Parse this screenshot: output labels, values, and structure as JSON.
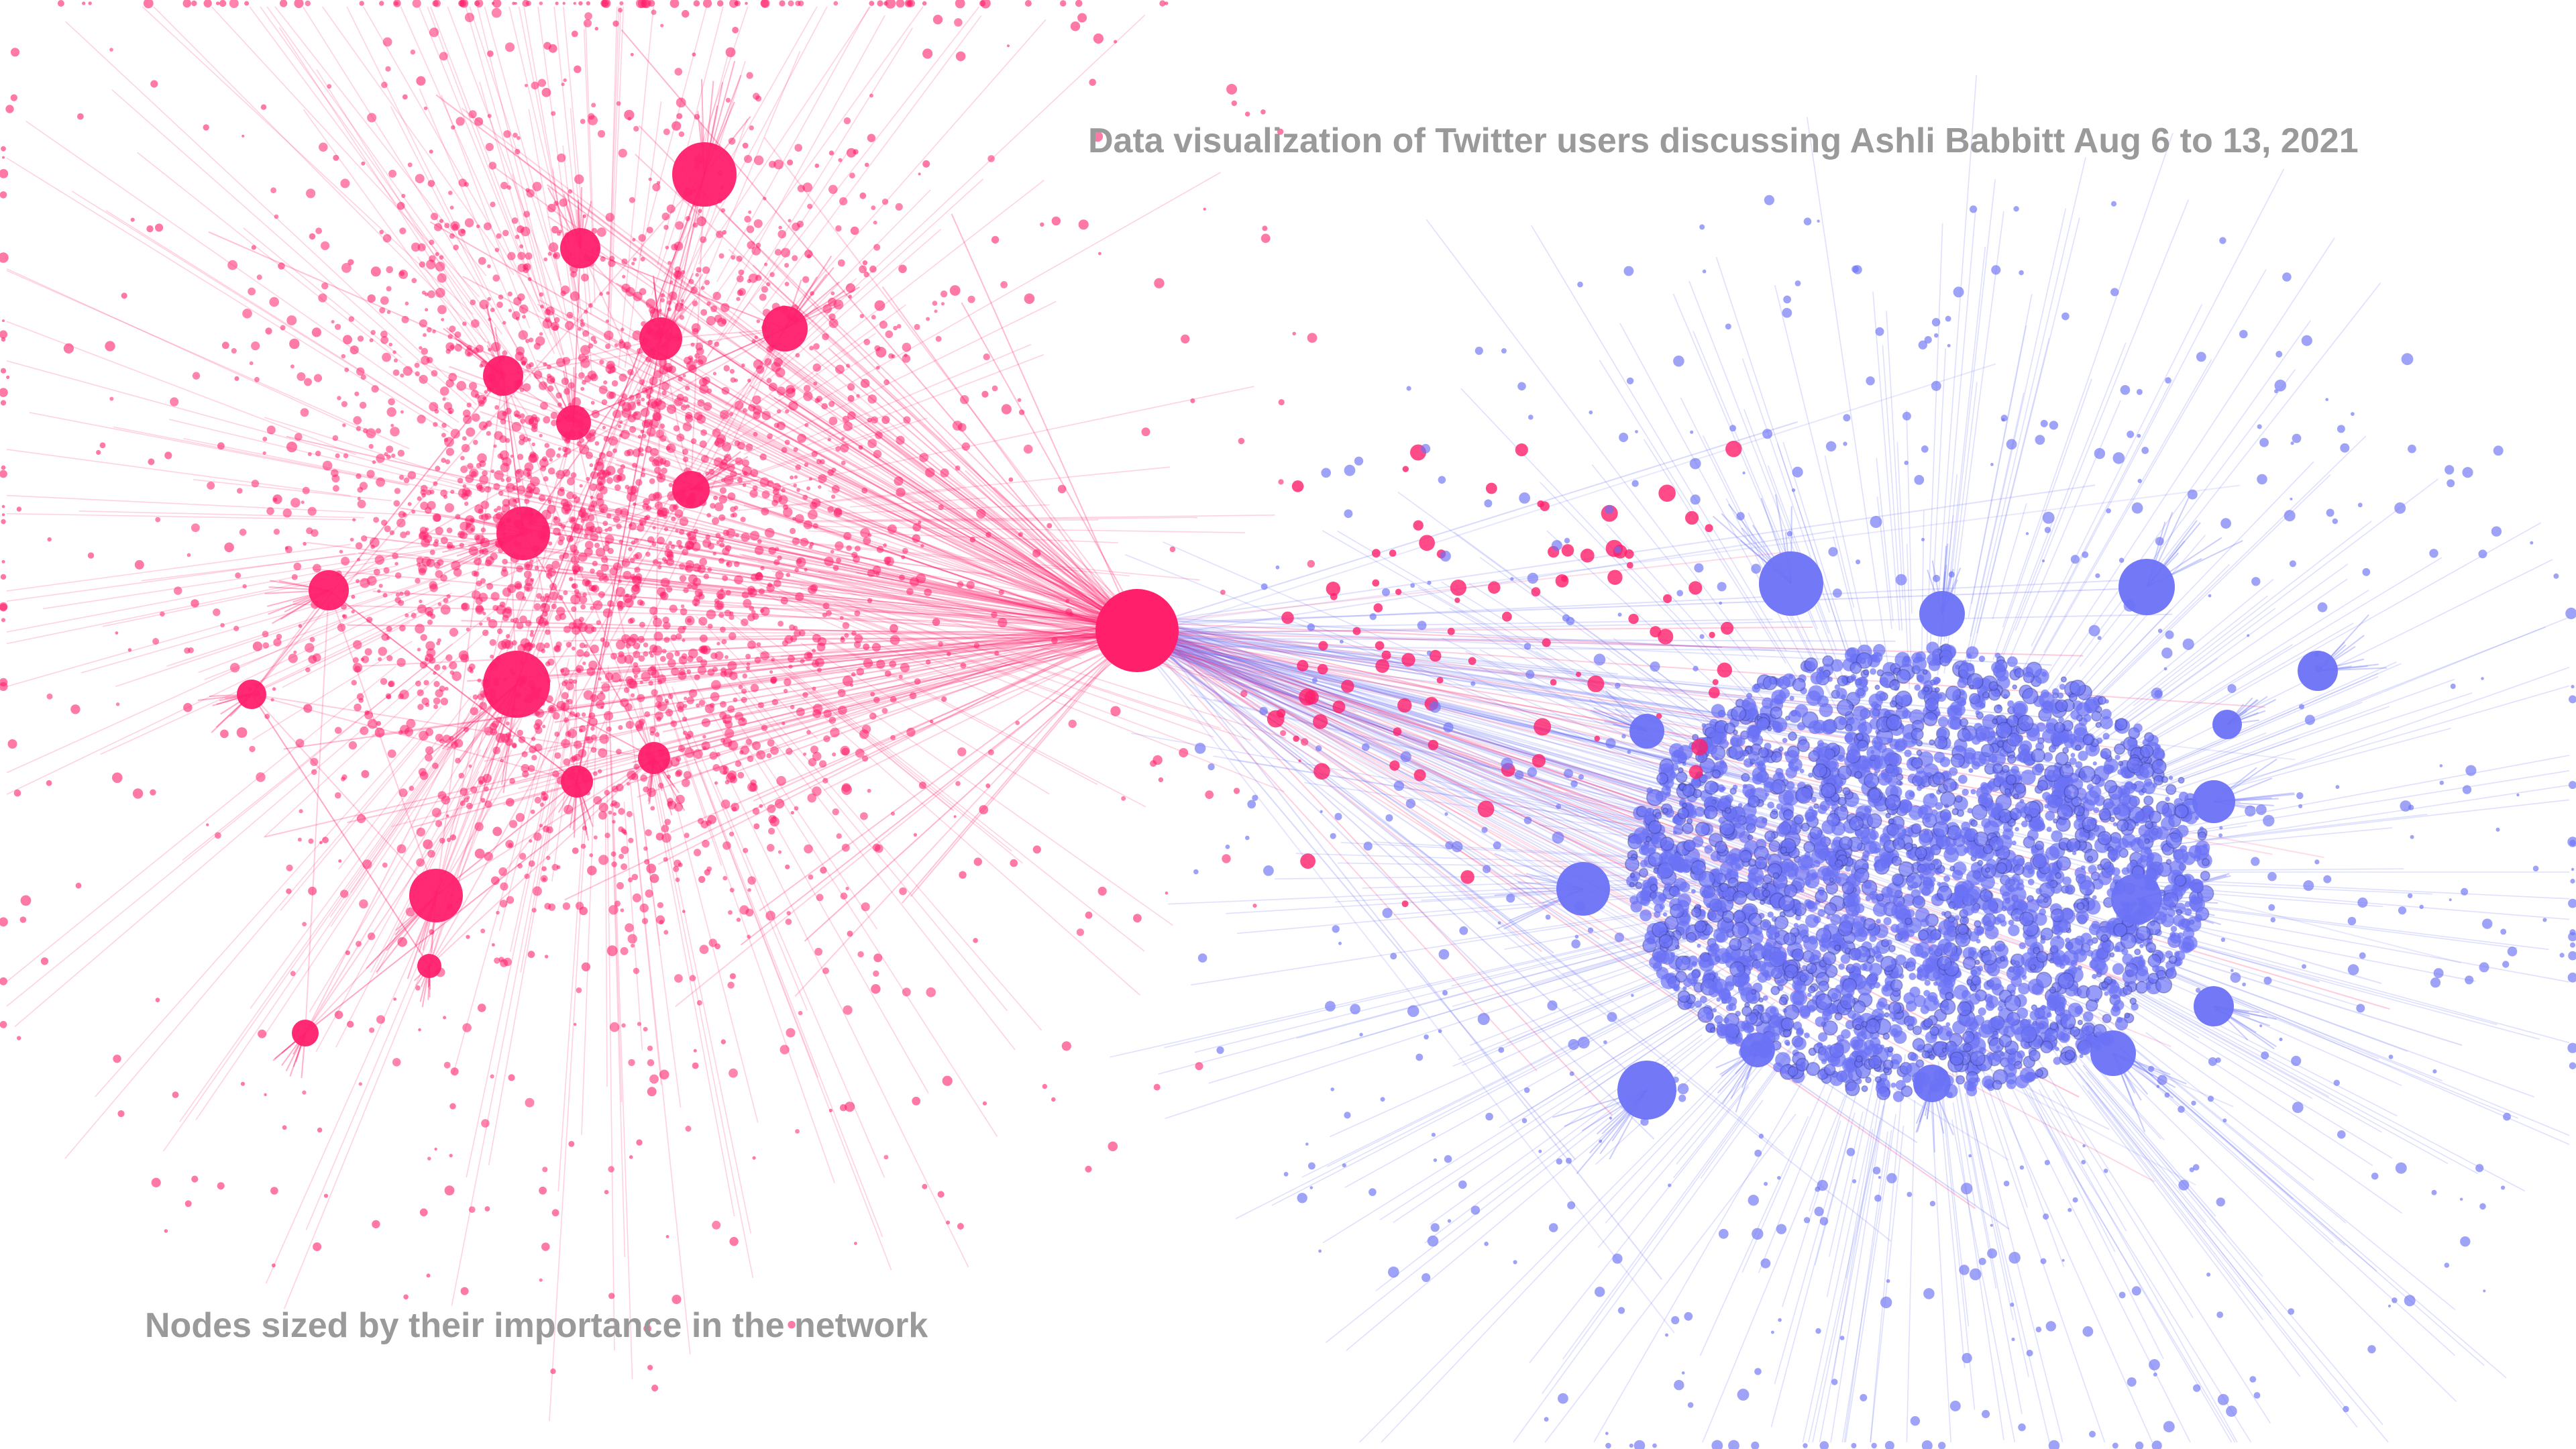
{
  "captions": {
    "title": "Data visualization of Twitter users discussing Ashli Babbitt Aug 6 to 13, 2021",
    "node_size_note": "Nodes sized by their importance in the network"
  },
  "colors": {
    "cluster_a": "#ff1f6b",
    "cluster_b": "#6b72f5",
    "caption_text": "#9a9a9a",
    "background": "#ffffff"
  }
}
